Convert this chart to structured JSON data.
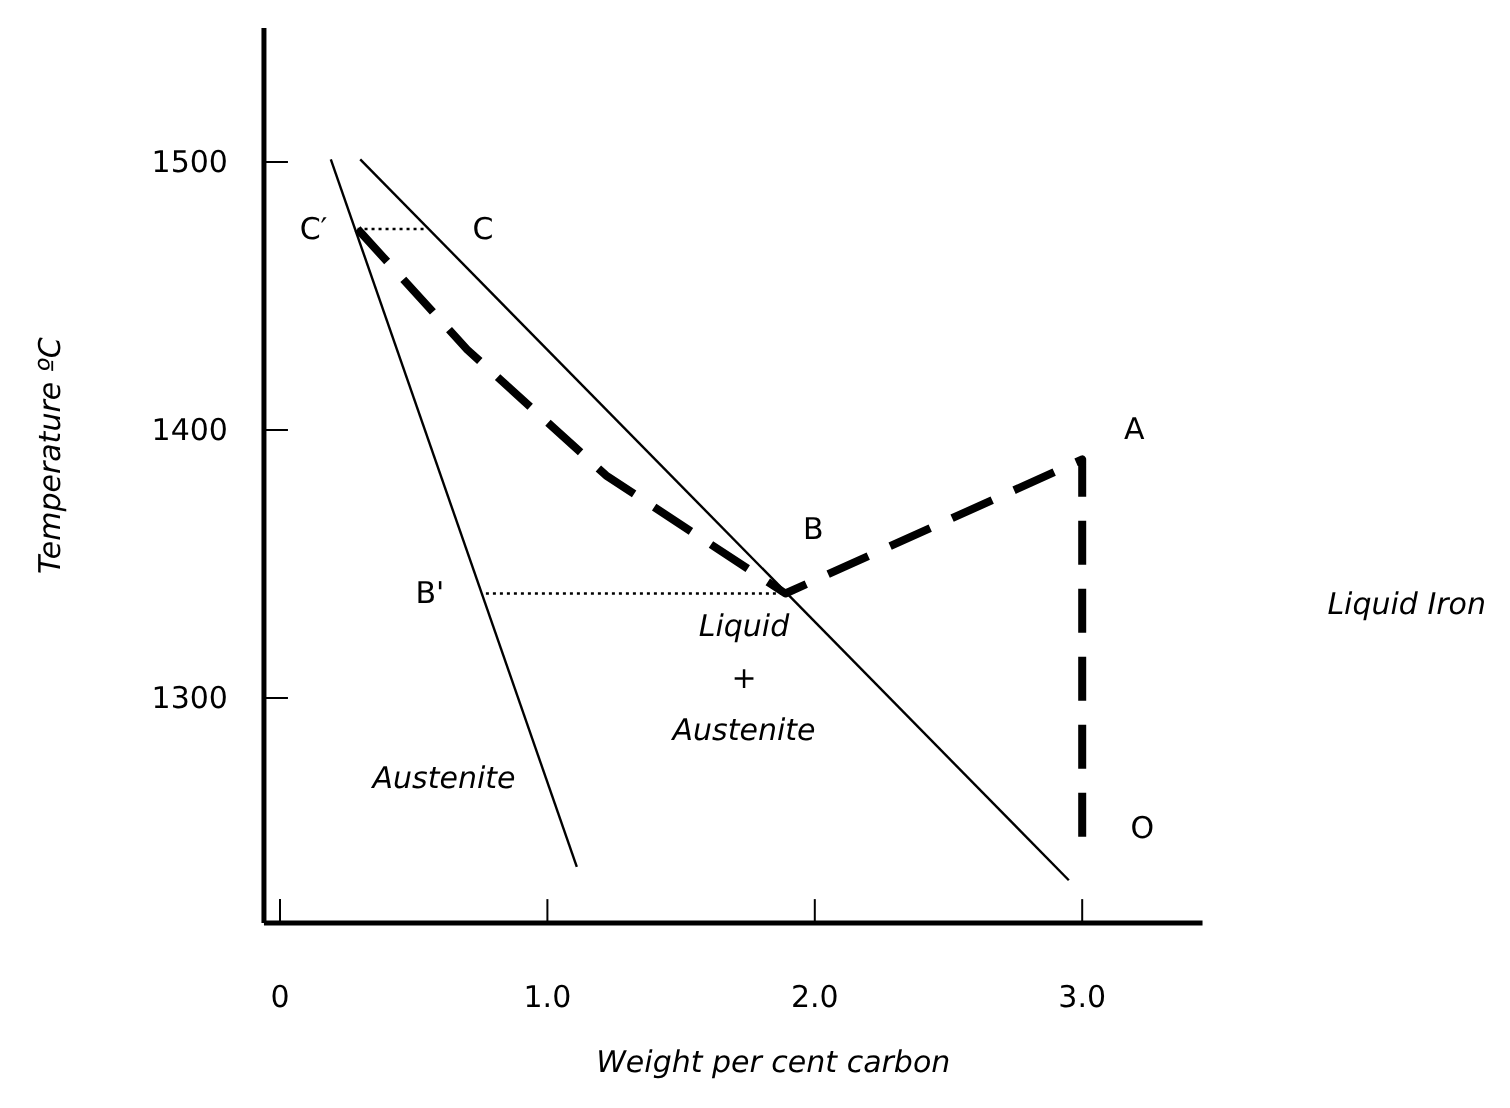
{
  "chart_data": {
    "type": "line",
    "xlabel": "Weight per cent carbon",
    "ylabel": "Temperature ºC",
    "xlim": [
      -0.06,
      3.45
    ],
    "ylim": [
      1216,
      1550
    ],
    "xticks": [
      0,
      {
        "value": 1,
        "label": "1.0"
      },
      {
        "value": 2,
        "label": "2.0"
      },
      {
        "value": 3,
        "label": "3.0"
      }
    ],
    "yticks": [
      1500,
      1400,
      1300
    ],
    "series": [
      {
        "color": "#000000",
        "line_style": "solid",
        "x": [
          0.3,
          2.95
        ],
        "values": [
          1501,
          1232
        ]
      },
      {
        "color": "#000000",
        "line_style": "solid",
        "x": [
          0.19,
          1.11
        ],
        "values": [
          1501,
          1237
        ]
      },
      {
        "color": "#000000",
        "line_style": "dashed",
        "x": [
          0.29,
          0.7,
          1.22,
          1.89,
          3.0,
          3.0
        ],
        "values": [
          1475,
          1430,
          1383,
          1339,
          1389,
          1247
        ]
      },
      {
        "color": "#000000",
        "line_style": "dotted",
        "x": [
          0.29,
          0.55
        ],
        "values": [
          1475,
          1475
        ]
      },
      {
        "color": "#000000",
        "line_style": "dotted",
        "x": [
          0.77,
          1.89
        ],
        "values": [
          1339,
          1339
        ]
      }
    ],
    "annotations": [
      {
        "text": "C′",
        "x": 0.29,
        "y": 1475
      },
      {
        "text": "C",
        "x": 0.55,
        "y": 1475
      },
      {
        "text": "B",
        "x": 1.89,
        "y": 1339
      },
      {
        "text": "B'",
        "x": 0.77,
        "y": 1339
      },
      {
        "text": "A",
        "x": 3.0,
        "y": 1389
      },
      {
        "text": "O",
        "x": 3.0,
        "y": 1247
      },
      "Liquid\n+\nAustenite",
      "Austenite",
      "Liquid Iron"
    ]
  }
}
